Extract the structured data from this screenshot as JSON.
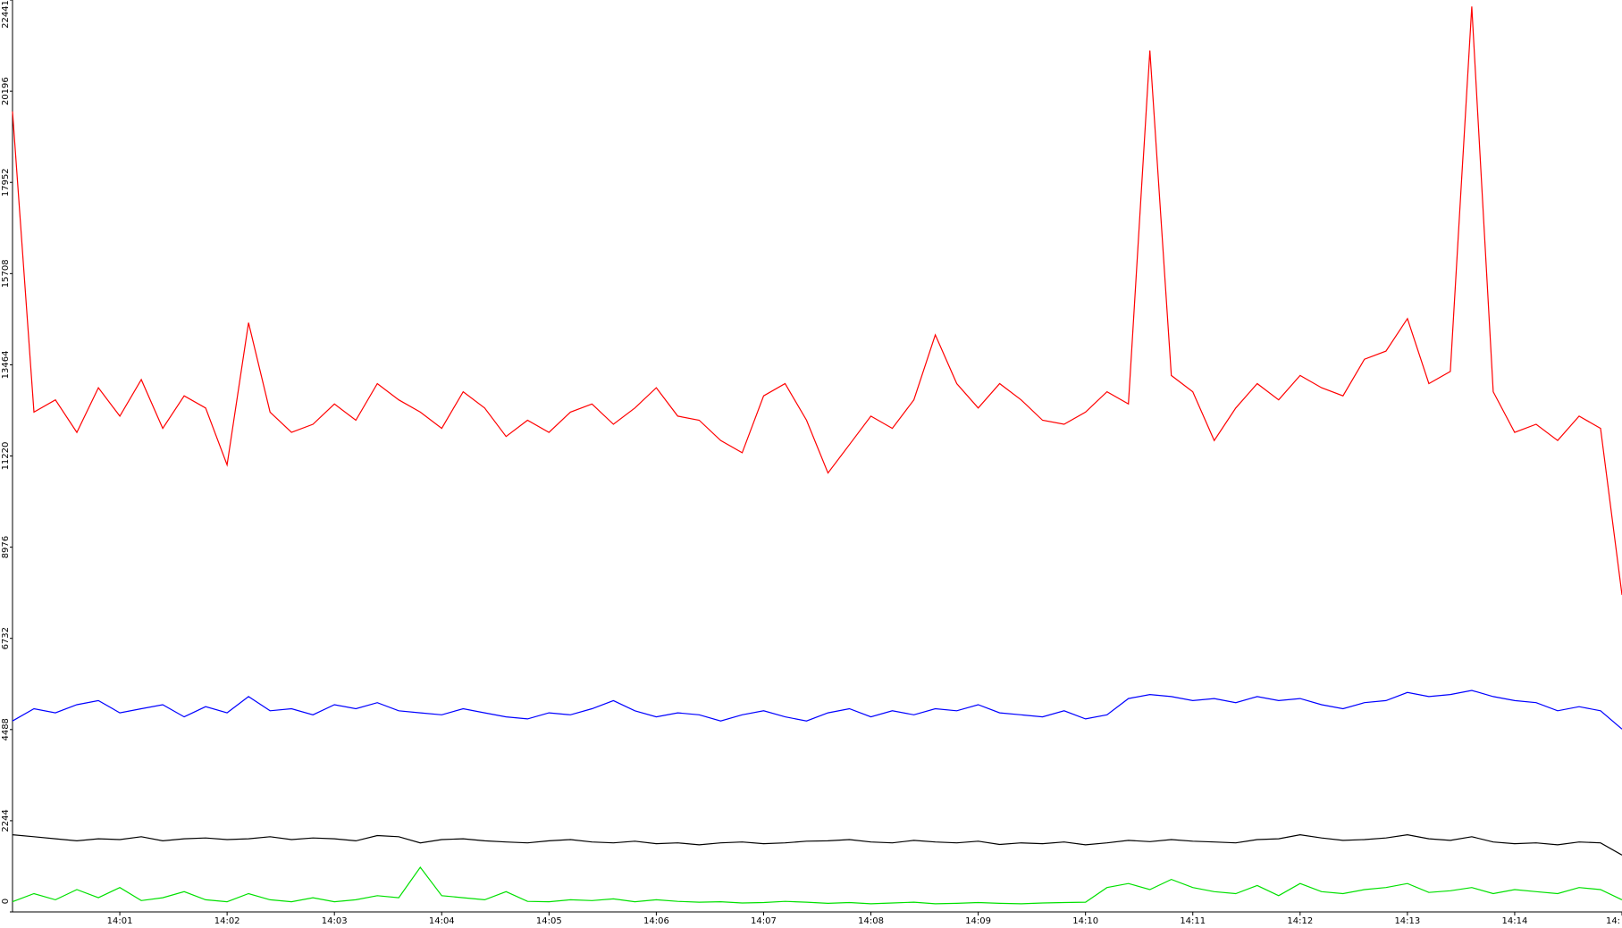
{
  "chart_data": {
    "type": "line",
    "x": [
      0,
      0.2,
      0.4,
      0.6,
      0.8,
      1,
      1.2,
      1.4,
      1.6,
      1.8,
      2,
      2.2,
      2.4,
      2.6,
      2.8,
      3,
      3.2,
      3.4,
      3.6,
      3.8,
      4,
      4.2,
      4.4,
      4.6,
      4.8,
      5,
      5.2,
      5.4,
      5.6,
      5.8,
      6,
      6.2,
      6.4,
      6.6,
      6.8,
      7,
      7.2,
      7.4,
      7.6,
      7.8,
      8,
      8.2,
      8.4,
      8.6,
      8.8,
      9,
      9.2,
      9.4,
      9.6,
      9.8,
      10,
      10.2,
      10.4,
      10.6,
      10.8,
      11,
      11.2,
      11.4,
      11.6,
      11.8,
      12,
      12.2,
      12.4,
      12.6,
      12.8,
      13,
      13.2,
      13.4,
      13.6,
      13.8,
      14,
      14.2,
      14.4,
      14.6,
      14.8,
      15
    ],
    "series": [
      {
        "color": "#ff0000",
        "values": [
          19700,
          12300,
          12600,
          11800,
          12900,
          12200,
          13100,
          11900,
          12700,
          12400,
          11000,
          14500,
          12300,
          11800,
          12000,
          12500,
          12100,
          13000,
          12600,
          12300,
          11900,
          12800,
          12400,
          11700,
          12100,
          11800,
          12300,
          12500,
          12000,
          12400,
          12900,
          12200,
          12100,
          11600,
          11300,
          12700,
          13000,
          12100,
          10800,
          11500,
          12200,
          11900,
          12600,
          14200,
          13000,
          12400,
          13000,
          12600,
          12100,
          12000,
          12300,
          12800,
          12500,
          21200,
          13200,
          12800,
          11600,
          12400,
          13000,
          12600,
          13200,
          12900,
          12700,
          13600,
          13800,
          14600,
          13000,
          13300,
          22280,
          12800,
          11800,
          12000,
          11600,
          12200,
          11900,
          7800
        ]
      },
      {
        "color": "#0000ff",
        "values": [
          4700,
          5000,
          4900,
          5100,
          5200,
          4900,
          5000,
          5100,
          4800,
          5050,
          4900,
          5300,
          4950,
          5000,
          4850,
          5100,
          5000,
          5150,
          4950,
          4900,
          4850,
          5000,
          4900,
          4800,
          4750,
          4900,
          4850,
          5000,
          5200,
          4950,
          4800,
          4900,
          4850,
          4700,
          4850,
          4950,
          4800,
          4700,
          4900,
          5000,
          4800,
          4950,
          4850,
          5000,
          4950,
          5100,
          4900,
          4850,
          4800,
          4950,
          4750,
          4850,
          5250,
          5350,
          5300,
          5200,
          5250,
          5150,
          5300,
          5200,
          5250,
          5100,
          5000,
          5150,
          5200,
          5400,
          5300,
          5350,
          5450,
          5300,
          5200,
          5150,
          4950,
          5050,
          4950,
          4500
        ]
      },
      {
        "color": "#000000",
        "values": [
          1900,
          1850,
          1800,
          1750,
          1800,
          1780,
          1850,
          1750,
          1800,
          1820,
          1780,
          1800,
          1850,
          1780,
          1820,
          1800,
          1750,
          1880,
          1850,
          1700,
          1780,
          1800,
          1750,
          1720,
          1700,
          1750,
          1780,
          1720,
          1700,
          1740,
          1680,
          1700,
          1650,
          1700,
          1720,
          1680,
          1700,
          1740,
          1750,
          1780,
          1720,
          1700,
          1760,
          1720,
          1700,
          1740,
          1660,
          1700,
          1680,
          1720,
          1650,
          1700,
          1760,
          1730,
          1780,
          1740,
          1720,
          1700,
          1780,
          1800,
          1900,
          1820,
          1760,
          1780,
          1820,
          1900,
          1800,
          1760,
          1850,
          1720,
          1680,
          1700,
          1650,
          1720,
          1700,
          1400
        ]
      },
      {
        "color": "#00e000",
        "values": [
          250,
          450,
          300,
          550,
          350,
          600,
          280,
          350,
          500,
          300,
          250,
          450,
          300,
          250,
          350,
          250,
          300,
          400,
          350,
          1100,
          400,
          350,
          300,
          500,
          260,
          250,
          300,
          280,
          320,
          250,
          300,
          260,
          240,
          250,
          220,
          230,
          260,
          240,
          210,
          230,
          200,
          220,
          240,
          200,
          210,
          230,
          210,
          200,
          220,
          230,
          240,
          600,
          700,
          550,
          800,
          600,
          500,
          450,
          650,
          400,
          700,
          500,
          450,
          550,
          600,
          700,
          480,
          520,
          600,
          450,
          550,
          500,
          450,
          600,
          550,
          300
        ]
      }
    ],
    "xlim": [
      0,
      15
    ],
    "xticks": [
      {
        "value": 1,
        "label": "14:01"
      },
      {
        "value": 2,
        "label": "14:02"
      },
      {
        "value": 3,
        "label": "14:03"
      },
      {
        "value": 4,
        "label": "14:04"
      },
      {
        "value": 5,
        "label": "14:05"
      },
      {
        "value": 6,
        "label": "14:06"
      },
      {
        "value": 7,
        "label": "14:07"
      },
      {
        "value": 8,
        "label": "14:08"
      },
      {
        "value": 9,
        "label": "14:09"
      },
      {
        "value": 10,
        "label": "14:10"
      },
      {
        "value": 11,
        "label": "14:11"
      },
      {
        "value": 12,
        "label": "14:12"
      },
      {
        "value": 13,
        "label": "14:13"
      },
      {
        "value": 14,
        "label": "14:14"
      },
      {
        "value": 15,
        "label": "14:"
      }
    ],
    "ylim": [
      0,
      22441
    ],
    "yticks": [
      0,
      2244,
      4488,
      6732,
      8976,
      11220,
      13464,
      15708,
      17952,
      20196,
      22441
    ]
  }
}
